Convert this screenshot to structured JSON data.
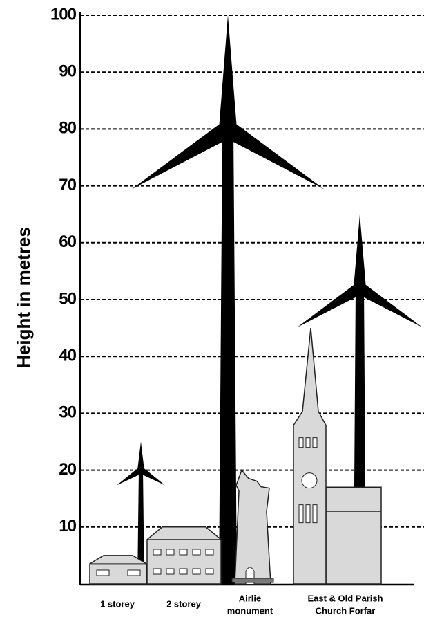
{
  "chart_data": {
    "type": "pictogram",
    "y_label": "Height in metres",
    "ylim": [
      0,
      100
    ],
    "yticks": [
      10,
      20,
      30,
      40,
      50,
      60,
      70,
      80,
      90,
      100
    ],
    "grid": true,
    "categories": [
      [
        "1 storey"
      ],
      [
        "2 storey"
      ],
      [
        "Airlie",
        "monument"
      ],
      [
        "East & Old Parish",
        "Church Forfar"
      ]
    ],
    "values": [
      5,
      10,
      20,
      45
    ],
    "church_nave_height": 17,
    "turbines": [
      {
        "hub_height": 20,
        "tip_height": 25
      },
      {
        "hub_height": 80,
        "tip_height": 100
      },
      {
        "hub_height": 52,
        "tip_height": 65
      }
    ]
  }
}
